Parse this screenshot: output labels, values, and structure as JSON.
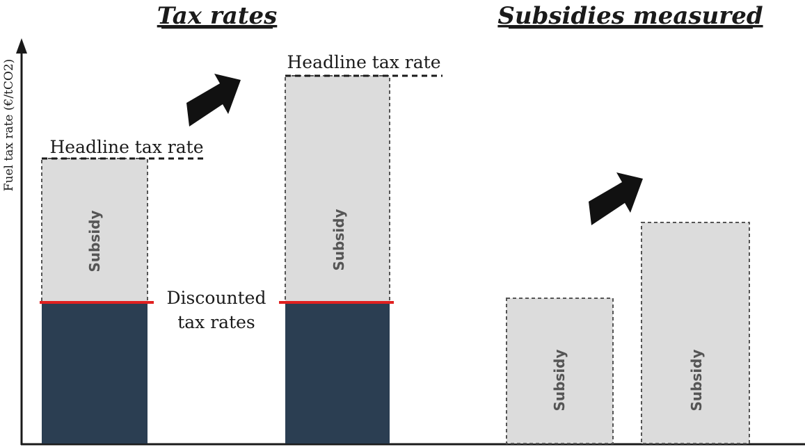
{
  "titles": {
    "left": "Tax rates",
    "right": "Subsidies measured"
  },
  "axis": {
    "ylabel": "Fuel tax rate (€/tCO2)"
  },
  "labels": {
    "headline_1": "Headline tax rate",
    "headline_2": "Headline tax rate",
    "discounted_line1": "Discounted",
    "discounted_line2": "tax rates"
  },
  "bars": {
    "bar1_subsidy": "Subsidy",
    "bar2_subsidy": "Subsidy",
    "bar3_subsidy": "Subsidy",
    "bar4_subsidy": "Subsidy"
  },
  "colors": {
    "discounted_fill": "#2b3e52",
    "subsidy_fill": "#dcdcdc",
    "discounted_line": "#e02020",
    "arrow": "#111111"
  },
  "icons": {
    "arrow": "up-right-arrow-icon"
  }
}
